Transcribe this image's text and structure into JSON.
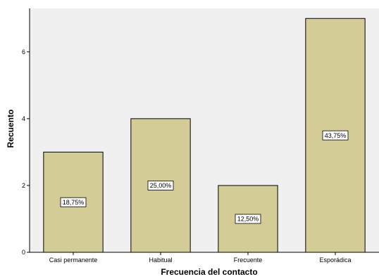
{
  "chart_data": {
    "type": "bar",
    "categories": [
      "Casi permanente",
      "Habitual",
      "Frecuente",
      "Esporádica"
    ],
    "values": [
      3,
      4,
      2,
      7
    ],
    "data_labels": [
      "18,75%",
      "25,00%",
      "12,50%",
      "43,75%"
    ],
    "xlabel": "Frecuencia del contacto",
    "ylabel": "Recuento",
    "ylim": [
      0,
      7.3
    ],
    "yticks": [
      0,
      2,
      4,
      6
    ],
    "grid": false,
    "colors": {
      "bar_fill": "#d4cc96",
      "bar_stroke": "#000000",
      "plot_background": "#f0f0f0",
      "label_box": "#ffffff"
    }
  }
}
